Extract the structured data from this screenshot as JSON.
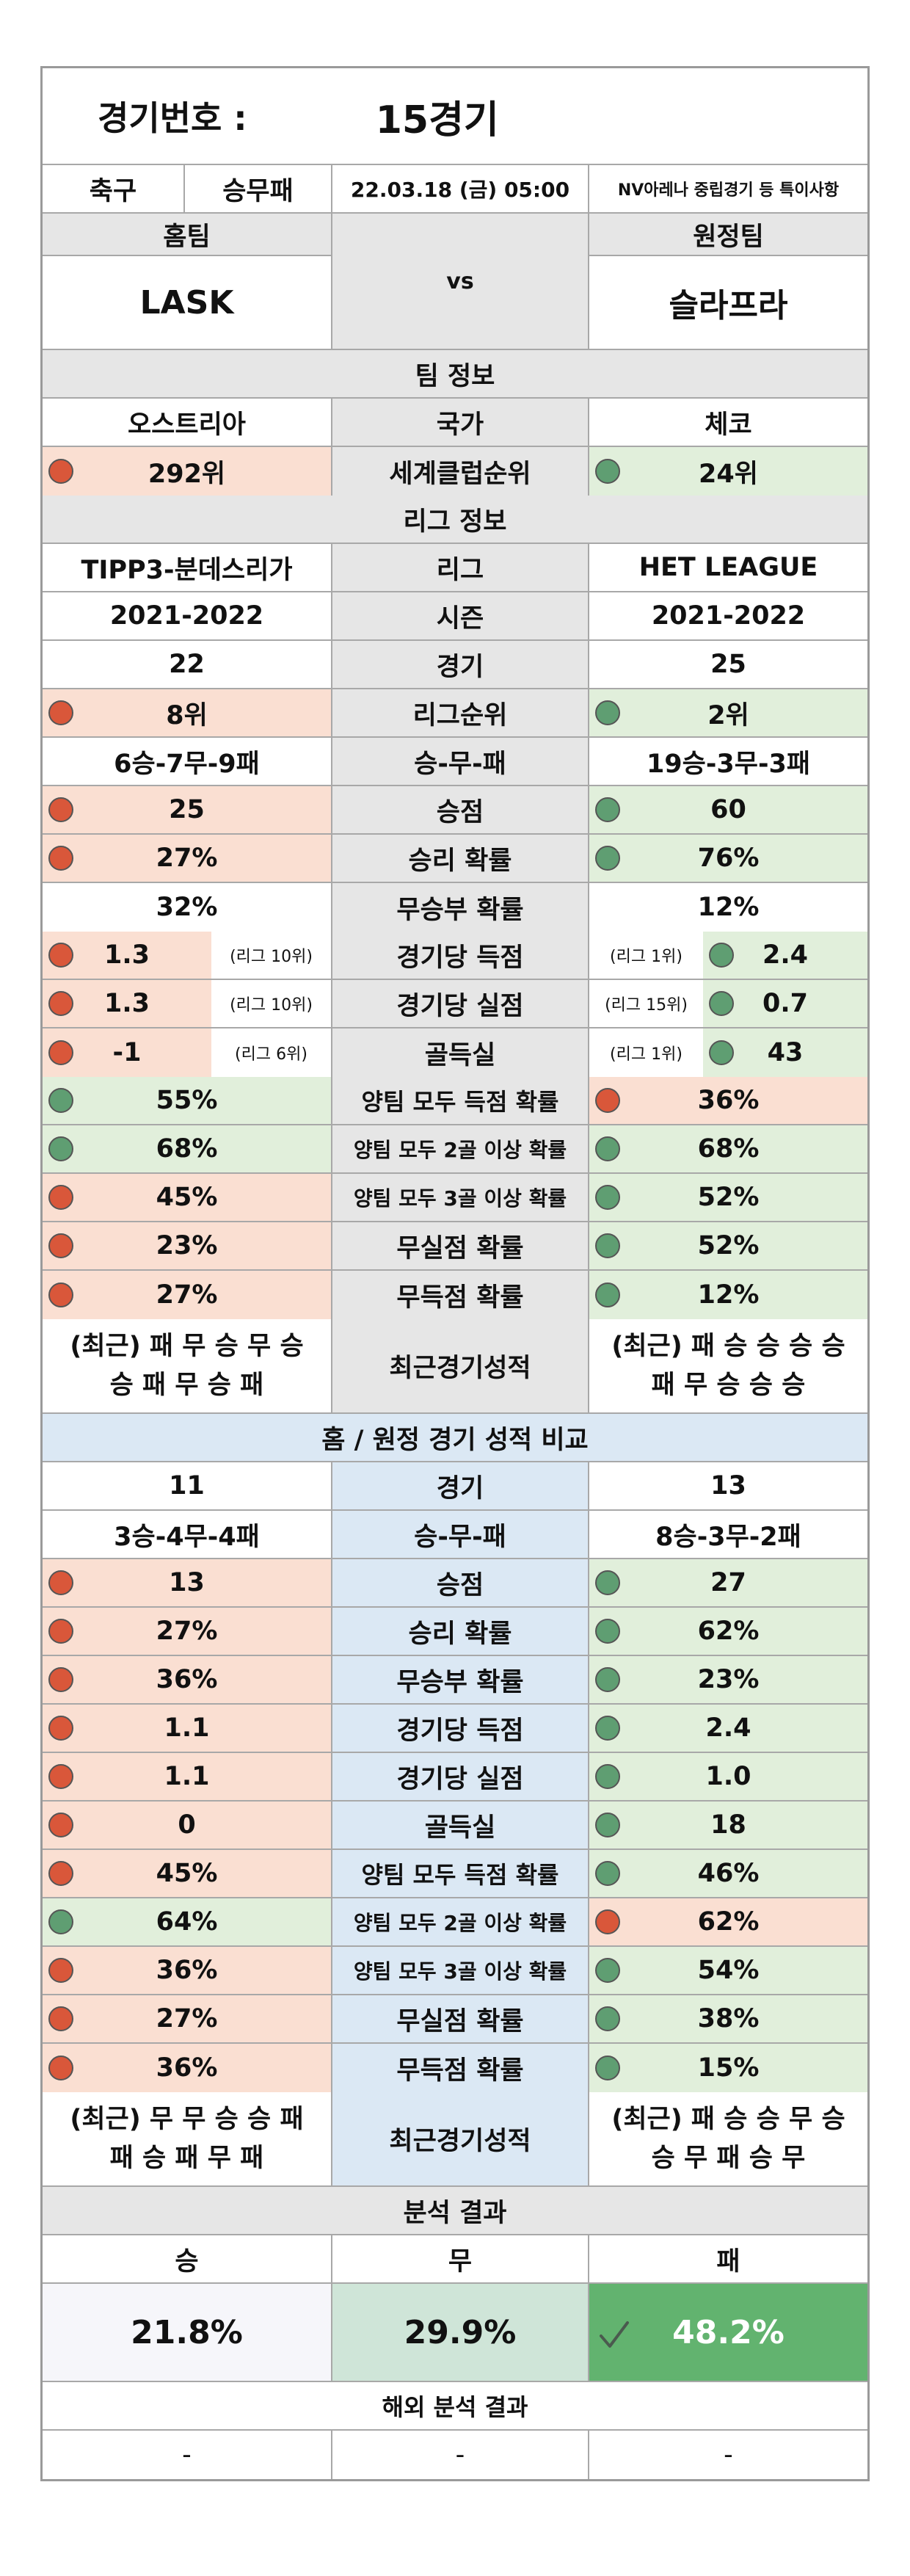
{
  "header": {
    "label": "경기번호 :",
    "game": "15경기"
  },
  "info": {
    "sport": "축구",
    "type": "승무패",
    "datetime": "22.03.18 (금) 05:00",
    "note": "NV아레나 중립경기 등 특이사항"
  },
  "teams": {
    "home_label": "홈팀",
    "away_label": "원정팀",
    "vs": "vs",
    "home": "LASK",
    "away": "슬라프라"
  },
  "sections": {
    "team_info": "팀 정보",
    "league_info": "리그 정보",
    "ha_compare": "홈 / 원정 경기 성적 비교",
    "analysis": "분석 결과",
    "overseas": "해외 분석 결과"
  },
  "team_rows": [
    {
      "left": "오스트리아",
      "label": "국가",
      "right": "체코",
      "ld": "",
      "rd": ""
    },
    {
      "left": "292위",
      "label": "세계클럽순위",
      "right": "24위",
      "ld": "red",
      "rd": "grn"
    }
  ],
  "league_rows": [
    {
      "left": "TIPP3-분데스리가",
      "label": "리그",
      "right": "HET LEAGUE",
      "ld": "",
      "rd": ""
    },
    {
      "left": "2021-2022",
      "label": "시즌",
      "right": "2021-2022",
      "ld": "",
      "rd": ""
    },
    {
      "left": "22",
      "label": "경기",
      "right": "25",
      "ld": "",
      "rd": ""
    },
    {
      "left": "8위",
      "label": "리그순위",
      "right": "2위",
      "ld": "red",
      "rd": "grn"
    },
    {
      "left": "6승-7무-9패",
      "label": "승-무-패",
      "right": "19승-3무-3패",
      "ld": "",
      "rd": ""
    },
    {
      "left": "25",
      "label": "승점",
      "right": "60",
      "ld": "red",
      "rd": "grn"
    },
    {
      "left": "27%",
      "label": "승리 확률",
      "right": "76%",
      "ld": "red",
      "rd": "grn"
    },
    {
      "left": "32%",
      "label": "무승부 확률",
      "right": "12%",
      "ld": "",
      "rd": ""
    }
  ],
  "rank_rows": [
    {
      "left": "1.3",
      "lrank": "(리그 10위)",
      "label": "경기당 득점",
      "rrank": "(리그 1위)",
      "right": "2.4"
    },
    {
      "left": "1.3",
      "lrank": "(리그 10위)",
      "label": "경기당 실점",
      "rrank": "(리그 15위)",
      "right": "0.7"
    },
    {
      "left": "-1",
      "lrank": "(리그 6위)",
      "label": "골득실",
      "rrank": "(리그 1위)",
      "right": "43"
    }
  ],
  "prob_rows": [
    {
      "left": "55%",
      "label": "양팀 모두 득점 확률",
      "right": "36%",
      "ld": "grn",
      "rd": "red"
    },
    {
      "left": "68%",
      "label": "양팀 모두 2골 이상 확률",
      "right": "68%",
      "ld": "grn",
      "rd": "grn"
    },
    {
      "left": "45%",
      "label": "양팀 모두 3골 이상 확률",
      "right": "52%",
      "ld": "red",
      "rd": "grn"
    },
    {
      "left": "23%",
      "label": "무실점 확률",
      "right": "52%",
      "ld": "red",
      "rd": "grn"
    },
    {
      "left": "27%",
      "label": "무득점 확률",
      "right": "12%",
      "ld": "red",
      "rd": "grn"
    }
  ],
  "recent": {
    "left1": "(최근) 패 무 승 무 승",
    "left2": "승 패 무 승 패",
    "label": "최근경기성적",
    "right1": "(최근) 패 승 승 승 승",
    "right2": "패 무 승 승 승"
  },
  "ha_rows": [
    {
      "left": "11",
      "label": "경기",
      "right": "13",
      "ld": "",
      "rd": ""
    },
    {
      "left": "3승-4무-4패",
      "label": "승-무-패",
      "right": "8승-3무-2패",
      "ld": "",
      "rd": ""
    },
    {
      "left": "13",
      "label": "승점",
      "right": "27",
      "ld": "red",
      "rd": "grn"
    },
    {
      "left": "27%",
      "label": "승리 확률",
      "right": "62%",
      "ld": "red",
      "rd": "grn"
    },
    {
      "left": "36%",
      "label": "무승부 확률",
      "right": "23%",
      "ld": "red",
      "rd": "grn"
    },
    {
      "left": "1.1",
      "label": "경기당 득점",
      "right": "2.4",
      "ld": "red",
      "rd": "grn"
    },
    {
      "left": "1.1",
      "label": "경기당 실점",
      "right": "1.0",
      "ld": "red",
      "rd": "grn"
    },
    {
      "left": "0",
      "label": "골득실",
      "right": "18",
      "ld": "red",
      "rd": "grn"
    },
    {
      "left": "45%",
      "label": "양팀 모두 득점 확률",
      "right": "46%",
      "ld": "red",
      "rd": "grn"
    },
    {
      "left": "64%",
      "label": "양팀 모두 2골 이상 확률",
      "right": "62%",
      "ld": "grn",
      "rd": "red"
    },
    {
      "left": "36%",
      "label": "양팀 모두 3골 이상 확률",
      "right": "54%",
      "ld": "red",
      "rd": "grn"
    },
    {
      "left": "27%",
      "label": "무실점 확률",
      "right": "38%",
      "ld": "red",
      "rd": "grn"
    },
    {
      "left": "36%",
      "label": "무득점 확률",
      "right": "15%",
      "ld": "red",
      "rd": "grn"
    }
  ],
  "ha_recent": {
    "left1": "(최근) 무 무 승 승 패",
    "left2": "패 승 패 무 패",
    "label": "최근경기성적",
    "right1": "(최근) 패 승 승 무 승",
    "right2": "승 무 패 승 무"
  },
  "result": {
    "win_label": "승",
    "draw_label": "무",
    "loss_label": "패",
    "win": "21.8%",
    "draw": "29.9%",
    "loss": "48.2%"
  },
  "overseas": {
    "left": "-",
    "mid": "-",
    "right": "-"
  },
  "colors": {
    "red_dot": "#d9573a",
    "green_dot": "#5f9e72",
    "pink": "#fadfd2",
    "green": "#e1efdb",
    "blue": "#dbe8f4",
    "gray": "#e6e6e6",
    "win_cell": "#f6f6fa",
    "draw_cell": "#cfe5d8",
    "loss_cell": "#62b36f"
  }
}
